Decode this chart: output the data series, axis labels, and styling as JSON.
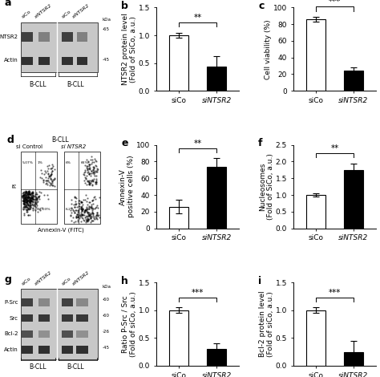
{
  "panel_b": {
    "categories": [
      "siCo",
      "siNTSR2"
    ],
    "values": [
      1.0,
      0.44
    ],
    "errors": [
      0.05,
      0.18
    ],
    "colors": [
      "white",
      "black"
    ],
    "ylabel": "NTSR2 protein level\n(Fold of SiCo, a.u.)",
    "ylim": [
      0,
      1.5
    ],
    "yticks": [
      0.0,
      0.5,
      1.0,
      1.5
    ],
    "significance": "**",
    "label": "b"
  },
  "panel_c": {
    "categories": [
      "siCo",
      "siNTSR2"
    ],
    "values": [
      86,
      24
    ],
    "errors": [
      3,
      4
    ],
    "colors": [
      "white",
      "black"
    ],
    "ylabel": "Cell viability (%)",
    "ylim": [
      0,
      100
    ],
    "yticks": [
      0,
      20,
      40,
      60,
      80,
      100
    ],
    "significance": "***",
    "label": "c"
  },
  "panel_e": {
    "categories": [
      "siCo",
      "siNTSR2"
    ],
    "values": [
      26,
      74
    ],
    "errors": [
      8,
      10
    ],
    "colors": [
      "white",
      "black"
    ],
    "ylabel": "Annexin-V\npositive cells (%)",
    "ylim": [
      0,
      100
    ],
    "yticks": [
      0,
      20,
      40,
      60,
      80,
      100
    ],
    "significance": "**",
    "label": "e"
  },
  "panel_f": {
    "categories": [
      "siCo",
      "siNTSR2"
    ],
    "values": [
      1.0,
      1.75
    ],
    "errors": [
      0.05,
      0.2
    ],
    "colors": [
      "white",
      "black"
    ],
    "ylabel": "Nucleosomes\n(Fold of SiCo, a.u.)",
    "ylim": [
      0.0,
      2.5
    ],
    "yticks": [
      0.0,
      0.5,
      1.0,
      1.5,
      2.0,
      2.5
    ],
    "significance": "**",
    "label": "f"
  },
  "panel_h": {
    "categories": [
      "siCo",
      "siNTSR2"
    ],
    "values": [
      1.0,
      0.3
    ],
    "errors": [
      0.05,
      0.1
    ],
    "colors": [
      "white",
      "black"
    ],
    "ylabel": "Ratio P-Src / Src\n(Fold of siCo, a.u.)",
    "ylim": [
      0,
      1.5
    ],
    "yticks": [
      0.0,
      0.5,
      1.0,
      1.5
    ],
    "significance": "***",
    "label": "h"
  },
  "panel_i": {
    "categories": [
      "siCo",
      "siNTSR2"
    ],
    "values": [
      1.0,
      0.25
    ],
    "errors": [
      0.05,
      0.2
    ],
    "colors": [
      "white",
      "black"
    ],
    "ylabel": "Bcl-2 protein level\n(Fold of siCo, a.u.)",
    "ylim": [
      0,
      1.5
    ],
    "yticks": [
      0.0,
      0.5,
      1.0,
      1.5
    ],
    "significance": "***",
    "label": "i"
  },
  "bar_width": 0.5,
  "edgecolor": "black",
  "tick_label_fontsize": 6.5,
  "axis_label_fontsize": 6.5,
  "panel_label_fontsize": 9,
  "sig_fontsize": 7.5,
  "bar_linewidth": 0.8
}
